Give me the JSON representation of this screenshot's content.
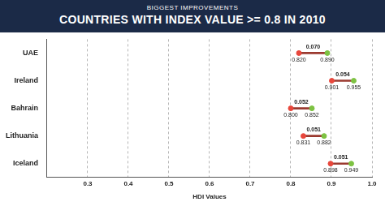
{
  "chart_data": {
    "type": "dumbbell",
    "title": "BIGGEST IMPROVEMENTS",
    "subtitle": "COUNTRIES WITH INDEX VALUE >= 0.8 IN 2010",
    "x_label": "HDI Values",
    "orientation": "horizontal",
    "categories": [
      "UAE",
      "Ireland",
      "Bahrain",
      "Lithuania",
      "Iceland"
    ],
    "series": [
      {
        "color": "#e8473c",
        "values": [
          0.82,
          0.901,
          0.8,
          0.831,
          0.898
        ],
        "value_labels": [
          "0.820",
          "0.901",
          "0.800",
          "0.831",
          "0.898"
        ]
      },
      {
        "color": "#7dc242",
        "values": [
          0.89,
          0.955,
          0.852,
          0.882,
          0.949
        ],
        "value_labels": [
          "0.890",
          "0.955",
          "0.852",
          "0.882",
          "0.949"
        ]
      }
    ],
    "differences": {
      "values": [
        0.07,
        0.054,
        0.052,
        0.051,
        0.051
      ],
      "value_labels": [
        "0.070",
        "0.054",
        "0.052",
        "0.051",
        "0.051"
      ]
    },
    "xlim": [
      0.2,
      1.0
    ],
    "xticks": [
      {
        "value": 0.3,
        "label": "0.3"
      },
      {
        "value": 0.4,
        "label": "0.4"
      },
      {
        "value": 0.5,
        "label": "0.5"
      },
      {
        "value": 0.6,
        "label": "0.6"
      },
      {
        "value": 0.7,
        "label": "0.7"
      },
      {
        "value": 0.8,
        "label": "0.8"
      },
      {
        "value": 0.9,
        "label": "0.9"
      },
      {
        "value": 1.0,
        "label": "1.0"
      }
    ],
    "grid": true,
    "data_labels": true
  }
}
